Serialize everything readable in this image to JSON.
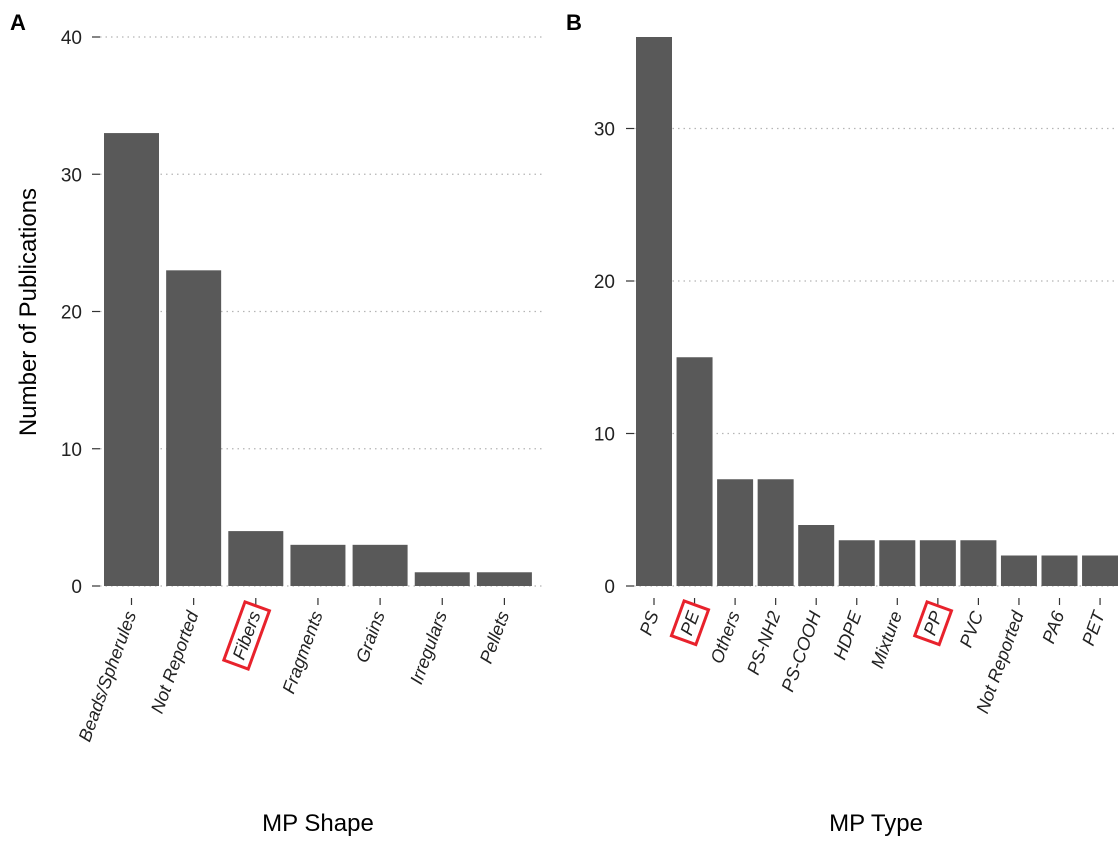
{
  "colors": {
    "bar": "#595959",
    "grid": "#b5b5b5",
    "highlight": "#e8222c"
  },
  "chart_data": [
    {
      "type": "bar",
      "panel": "A",
      "categories": [
        "Beads/Spherules",
        "Not Reported",
        "Fibers",
        "Fragments",
        "Grains",
        "Irregulars",
        "Pellets"
      ],
      "values": [
        33,
        23,
        4,
        3,
        3,
        1,
        1
      ],
      "highlighted": [
        "Fibers"
      ],
      "xlabel": "MP Shape",
      "ylabel": "Number of Publications",
      "ylim": [
        0,
        40
      ],
      "yticks": [
        0,
        10,
        20,
        30,
        40
      ],
      "grid": "horizontal dotted"
    },
    {
      "type": "bar",
      "panel": "B",
      "categories": [
        "PS",
        "PE",
        "Others",
        "PS-NH2",
        "PS-COOH",
        "HDPE",
        "Mixture",
        "PP",
        "PVC",
        "Not Reported",
        "PA6",
        "PET"
      ],
      "values": [
        36,
        15,
        7,
        7,
        4,
        3,
        3,
        3,
        3,
        2,
        2,
        2
      ],
      "highlighted": [
        "PE",
        "PP"
      ],
      "xlabel": "MP Type",
      "ylabel": "",
      "ylim": [
        0,
        36
      ],
      "yticks": [
        0,
        10,
        20,
        30
      ],
      "grid": "horizontal dotted"
    }
  ]
}
